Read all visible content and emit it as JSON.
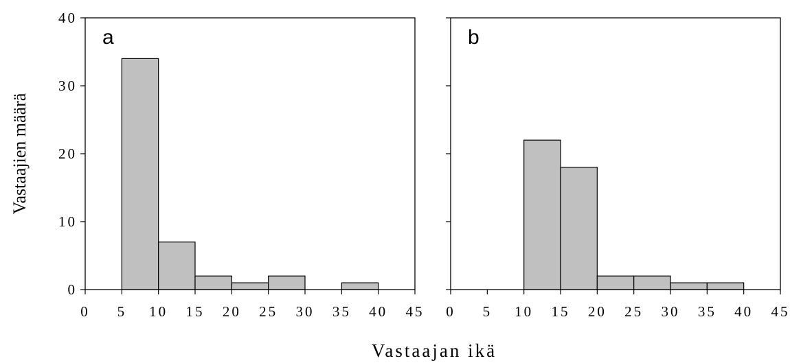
{
  "chart_data": [
    {
      "type": "bar",
      "panel_label": "a",
      "bins": [
        [
          5,
          10
        ],
        [
          10,
          15
        ],
        [
          15,
          20
        ],
        [
          20,
          25
        ],
        [
          25,
          30
        ],
        [
          30,
          35
        ],
        [
          35,
          40
        ]
      ],
      "values": [
        34,
        7,
        2,
        1,
        2,
        0,
        1
      ],
      "xlim": [
        0,
        45
      ],
      "ylim": [
        0,
        40
      ],
      "xticks": [
        "0",
        "5",
        "10",
        "15",
        "20",
        "25",
        "30",
        "35",
        "40",
        "45"
      ],
      "yticks": [
        "0",
        "10",
        "20",
        "30",
        "40"
      ]
    },
    {
      "type": "bar",
      "panel_label": "b",
      "bins": [
        [
          10,
          15
        ],
        [
          15,
          20
        ],
        [
          20,
          25
        ],
        [
          25,
          30
        ],
        [
          30,
          35
        ],
        [
          35,
          40
        ]
      ],
      "values": [
        22,
        18,
        2,
        2,
        1,
        1
      ],
      "xlim": [
        0,
        45
      ],
      "ylim": [
        0,
        40
      ],
      "xticks": [
        "0",
        "5",
        "10",
        "15",
        "20",
        "25",
        "30",
        "35",
        "40",
        "45"
      ],
      "yticks": []
    }
  ],
  "ylabel": "Vastaajien määrä",
  "xlabel": "Vastaajan ikä",
  "colors": {
    "bar_fill": "#c0c0c0",
    "bar_edge": "#000000"
  }
}
